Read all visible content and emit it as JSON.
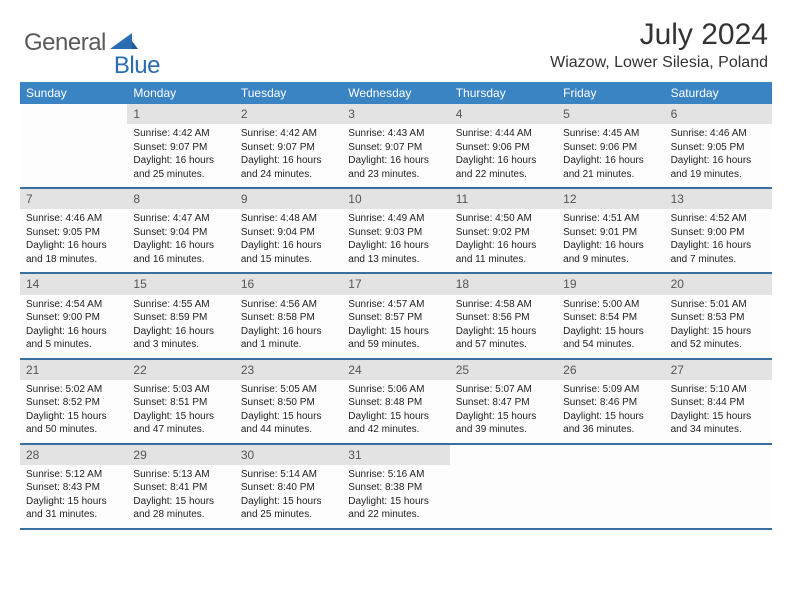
{
  "brand": {
    "part1": "General",
    "part2": "Blue"
  },
  "title": "July 2024",
  "location": "Wiazow, Lower Silesia, Poland",
  "colors": {
    "header_bar": "#3b84c4",
    "week_border": "#3b6fa0",
    "daynum_bg": "#e3e3e3",
    "logo_gray": "#5a5a5a",
    "logo_blue": "#2a6db0"
  },
  "weekdays": [
    "Sunday",
    "Monday",
    "Tuesday",
    "Wednesday",
    "Thursday",
    "Friday",
    "Saturday"
  ],
  "weeks": [
    [
      null,
      {
        "n": "1",
        "sr": "4:42 AM",
        "ss": "9:07 PM",
        "dl": "16 hours and 25 minutes."
      },
      {
        "n": "2",
        "sr": "4:42 AM",
        "ss": "9:07 PM",
        "dl": "16 hours and 24 minutes."
      },
      {
        "n": "3",
        "sr": "4:43 AM",
        "ss": "9:07 PM",
        "dl": "16 hours and 23 minutes."
      },
      {
        "n": "4",
        "sr": "4:44 AM",
        "ss": "9:06 PM",
        "dl": "16 hours and 22 minutes."
      },
      {
        "n": "5",
        "sr": "4:45 AM",
        "ss": "9:06 PM",
        "dl": "16 hours and 21 minutes."
      },
      {
        "n": "6",
        "sr": "4:46 AM",
        "ss": "9:05 PM",
        "dl": "16 hours and 19 minutes."
      }
    ],
    [
      {
        "n": "7",
        "sr": "4:46 AM",
        "ss": "9:05 PM",
        "dl": "16 hours and 18 minutes."
      },
      {
        "n": "8",
        "sr": "4:47 AM",
        "ss": "9:04 PM",
        "dl": "16 hours and 16 minutes."
      },
      {
        "n": "9",
        "sr": "4:48 AM",
        "ss": "9:04 PM",
        "dl": "16 hours and 15 minutes."
      },
      {
        "n": "10",
        "sr": "4:49 AM",
        "ss": "9:03 PM",
        "dl": "16 hours and 13 minutes."
      },
      {
        "n": "11",
        "sr": "4:50 AM",
        "ss": "9:02 PM",
        "dl": "16 hours and 11 minutes."
      },
      {
        "n": "12",
        "sr": "4:51 AM",
        "ss": "9:01 PM",
        "dl": "16 hours and 9 minutes."
      },
      {
        "n": "13",
        "sr": "4:52 AM",
        "ss": "9:00 PM",
        "dl": "16 hours and 7 minutes."
      }
    ],
    [
      {
        "n": "14",
        "sr": "4:54 AM",
        "ss": "9:00 PM",
        "dl": "16 hours and 5 minutes."
      },
      {
        "n": "15",
        "sr": "4:55 AM",
        "ss": "8:59 PM",
        "dl": "16 hours and 3 minutes."
      },
      {
        "n": "16",
        "sr": "4:56 AM",
        "ss": "8:58 PM",
        "dl": "16 hours and 1 minute."
      },
      {
        "n": "17",
        "sr": "4:57 AM",
        "ss": "8:57 PM",
        "dl": "15 hours and 59 minutes."
      },
      {
        "n": "18",
        "sr": "4:58 AM",
        "ss": "8:56 PM",
        "dl": "15 hours and 57 minutes."
      },
      {
        "n": "19",
        "sr": "5:00 AM",
        "ss": "8:54 PM",
        "dl": "15 hours and 54 minutes."
      },
      {
        "n": "20",
        "sr": "5:01 AM",
        "ss": "8:53 PM",
        "dl": "15 hours and 52 minutes."
      }
    ],
    [
      {
        "n": "21",
        "sr": "5:02 AM",
        "ss": "8:52 PM",
        "dl": "15 hours and 50 minutes."
      },
      {
        "n": "22",
        "sr": "5:03 AM",
        "ss": "8:51 PM",
        "dl": "15 hours and 47 minutes."
      },
      {
        "n": "23",
        "sr": "5:05 AM",
        "ss": "8:50 PM",
        "dl": "15 hours and 44 minutes."
      },
      {
        "n": "24",
        "sr": "5:06 AM",
        "ss": "8:48 PM",
        "dl": "15 hours and 42 minutes."
      },
      {
        "n": "25",
        "sr": "5:07 AM",
        "ss": "8:47 PM",
        "dl": "15 hours and 39 minutes."
      },
      {
        "n": "26",
        "sr": "5:09 AM",
        "ss": "8:46 PM",
        "dl": "15 hours and 36 minutes."
      },
      {
        "n": "27",
        "sr": "5:10 AM",
        "ss": "8:44 PM",
        "dl": "15 hours and 34 minutes."
      }
    ],
    [
      {
        "n": "28",
        "sr": "5:12 AM",
        "ss": "8:43 PM",
        "dl": "15 hours and 31 minutes."
      },
      {
        "n": "29",
        "sr": "5:13 AM",
        "ss": "8:41 PM",
        "dl": "15 hours and 28 minutes."
      },
      {
        "n": "30",
        "sr": "5:14 AM",
        "ss": "8:40 PM",
        "dl": "15 hours and 25 minutes."
      },
      {
        "n": "31",
        "sr": "5:16 AM",
        "ss": "8:38 PM",
        "dl": "15 hours and 22 minutes."
      },
      null,
      null,
      null
    ]
  ],
  "labels": {
    "sunrise": "Sunrise:",
    "sunset": "Sunset:",
    "daylight": "Daylight:"
  }
}
